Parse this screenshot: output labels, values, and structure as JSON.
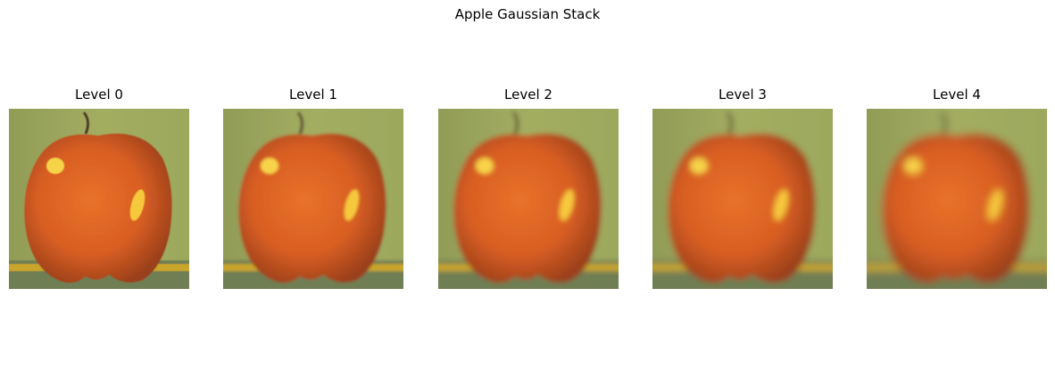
{
  "figure": {
    "title": "Apple Gaussian Stack"
  },
  "panels": [
    {
      "label": "Level 0",
      "blur": 0
    },
    {
      "label": "Level 1",
      "blur": 1
    },
    {
      "label": "Level 2",
      "blur": 2
    },
    {
      "label": "Level 3",
      "blur": 3
    },
    {
      "label": "Level 4",
      "blur": 4
    }
  ]
}
